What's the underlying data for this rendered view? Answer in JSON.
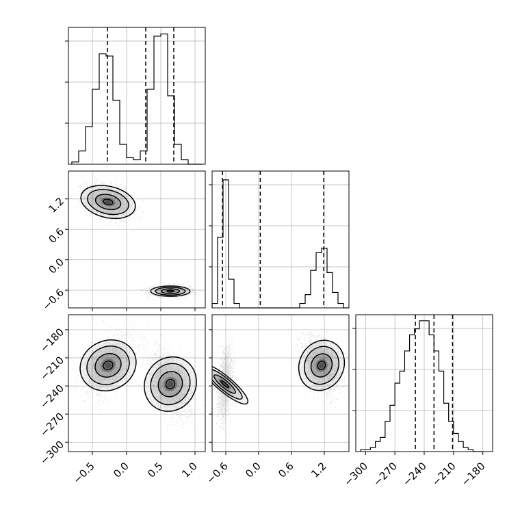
{
  "chart_data": [
    {
      "type": "histogram",
      "panel": "x1",
      "grid": true,
      "xlim": [
        -0.85,
        1.15
      ],
      "bins": [
        -0.8,
        -0.7,
        -0.6,
        -0.5,
        -0.4,
        -0.3,
        -0.2,
        -0.1,
        0.0,
        0.1,
        0.2,
        0.3,
        0.4,
        0.5,
        0.6,
        0.7,
        0.8,
        0.9,
        1.0,
        1.1
      ],
      "counts": [
        1,
        6,
        17,
        34,
        50,
        49,
        29,
        9,
        3,
        2,
        6,
        34,
        58,
        59,
        31,
        9,
        2,
        0,
        0
      ],
      "ymax": 62,
      "quantile_lines": [
        -0.28,
        0.28,
        0.69
      ],
      "xticks": [
        -0.5,
        0.0,
        0.5,
        1.0
      ],
      "xtick_labels": [
        "−0.5",
        "0.0",
        "0.5",
        "1.0"
      ]
    },
    {
      "type": "histogram",
      "panel": "x2",
      "grid": true,
      "xlim": [
        -0.85,
        1.65
      ],
      "bins": [
        -0.85,
        -0.75,
        -0.65,
        -0.55,
        -0.45,
        -0.35,
        -0.25,
        -0.15,
        -0.05,
        0.05,
        0.15,
        0.25,
        0.35,
        0.45,
        0.55,
        0.65,
        0.75,
        0.85,
        0.95,
        1.05,
        1.15,
        1.25,
        1.35,
        1.45,
        1.55,
        1.65
      ],
      "counts": [
        2,
        32,
        58,
        13,
        2,
        0,
        0,
        0,
        0,
        0,
        0,
        0,
        0,
        0,
        0,
        0,
        2,
        6,
        17,
        25,
        27,
        16,
        7,
        2,
        0
      ],
      "ymax": 62,
      "quantile_lines": [
        -0.66,
        0.03,
        1.19
      ],
      "xticks": [
        -0.6,
        0.0,
        0.6,
        1.2
      ],
      "xtick_labels": [
        "−0.6",
        "0.0",
        "0.6",
        "1.2"
      ]
    },
    {
      "type": "histogram",
      "panel": "x3",
      "grid": true,
      "xlim": [
        -310,
        -170
      ],
      "bins": [
        -305,
        -300,
        -295,
        -290,
        -285,
        -280,
        -275,
        -270,
        -265,
        -260,
        -255,
        -250,
        -245,
        -240,
        -235,
        -230,
        -225,
        -220,
        -215,
        -210,
        -205,
        -200,
        -195,
        -190,
        -185,
        -180
      ],
      "counts": [
        1,
        1,
        2,
        5,
        7,
        15,
        23,
        34,
        40,
        50,
        58,
        61,
        65,
        65,
        58,
        50,
        40,
        24,
        15,
        9,
        5,
        2,
        1,
        0,
        0
      ],
      "ymax": 68,
      "quantile_lines": [
        -249,
        -230,
        -211
      ],
      "xticks": [
        -300,
        -270,
        -240,
        -210,
        -180
      ],
      "xtick_labels": [
        "−300",
        "−270",
        "−240",
        "−210",
        "−180"
      ]
    },
    {
      "type": "scatter",
      "panel": "x1 vs x2",
      "grid": true,
      "xlim": [
        -0.85,
        1.15
      ],
      "ylim": [
        -0.95,
        1.75
      ],
      "modes": [
        {
          "cx": -0.27,
          "cy": 1.14,
          "sx": 0.17,
          "sy": 0.17,
          "rho": -0.35,
          "weight": 0.5
        },
        {
          "cx": 0.64,
          "cy": -0.62,
          "sx": 0.14,
          "sy": 0.05,
          "rho": 0.0,
          "weight": 0.5
        }
      ],
      "yticks": [
        -0.6,
        0.0,
        0.6,
        1.2
      ],
      "ytick_labels": [
        "−0.6",
        "0.0",
        "0.6",
        "1.2"
      ]
    },
    {
      "type": "scatter",
      "panel": "x1 vs x3",
      "grid": true,
      "xlim": [
        -0.85,
        1.15
      ],
      "ylim": [
        -310,
        -164
      ],
      "modes": [
        {
          "cx": -0.27,
          "cy": -218,
          "sx": 0.17,
          "sy": 15,
          "rho": 0.45,
          "weight": 0.5
        },
        {
          "cx": 0.64,
          "cy": -238,
          "sx": 0.15,
          "sy": 17,
          "rho": -0.45,
          "weight": 0.5
        }
      ],
      "xticks": [
        -0.5,
        0.0,
        0.5,
        1.0
      ],
      "xtick_labels": [
        "−0.5",
        "0.0",
        "0.5",
        "1.0"
      ],
      "yticks": [
        -300,
        -270,
        -240,
        -210,
        -180
      ],
      "ytick_labels": [
        "−300",
        "−270",
        "−240",
        "−210",
        "−180"
      ]
    },
    {
      "type": "scatter",
      "panel": "x2 vs x3",
      "grid": true,
      "xlim": [
        -0.85,
        1.65
      ],
      "ylim": [
        -310,
        -164
      ],
      "modes": [
        {
          "cx": -0.62,
          "cy": -238,
          "sx": 0.06,
          "sy": 17,
          "rho": 0.3,
          "weight": 0.5
        },
        {
          "cx": 1.15,
          "cy": -218,
          "sx": 0.17,
          "sy": 15,
          "rho": -0.35,
          "weight": 0.5
        }
      ],
      "xticks": [
        -0.6,
        0.0,
        0.6,
        1.2
      ],
      "xtick_labels": [
        "−0.6",
        "0.0",
        "0.6",
        "1.2"
      ]
    }
  ]
}
